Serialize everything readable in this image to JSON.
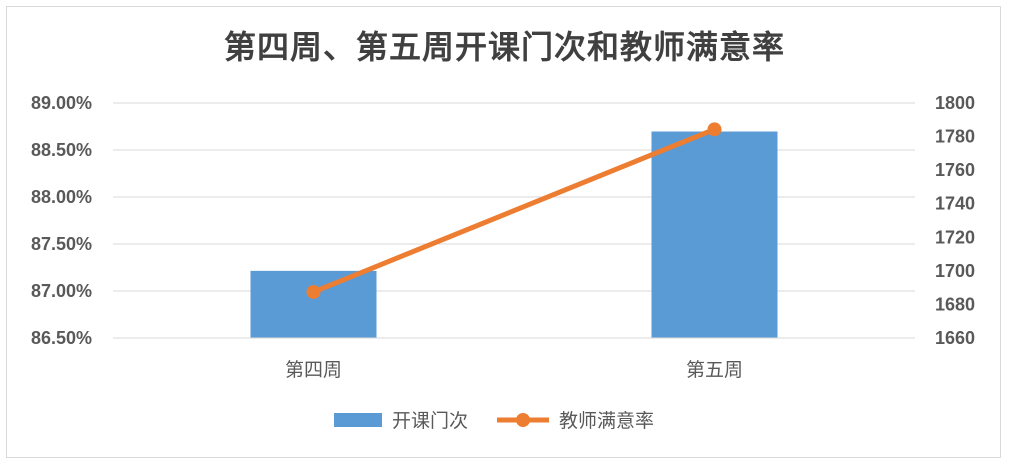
{
  "chart_data": {
    "type": "bar",
    "title": "第四周、第五周开课门次和教师满意率",
    "categories": [
      "第四周",
      "第五周"
    ],
    "series": [
      {
        "name": "开课门次",
        "kind": "bar",
        "axis": "right",
        "values": [
          1700,
          1783
        ],
        "color": "#5b9bd5"
      },
      {
        "name": "教师满意率",
        "kind": "line",
        "axis": "left",
        "values": [
          86.99,
          88.72
        ],
        "color": "#ed7d31"
      }
    ],
    "y_left": {
      "ticks": [
        "89.00%",
        "88.50%",
        "88.00%",
        "87.50%",
        "87.00%",
        "86.50%"
      ],
      "range": [
        86.5,
        89.0
      ]
    },
    "y_right": {
      "ticks": [
        "1800",
        "1780",
        "1760",
        "1740",
        "1720",
        "1700",
        "1680",
        "1660"
      ],
      "range": [
        1660,
        1800
      ]
    },
    "grid": true,
    "legend": "bottom"
  }
}
